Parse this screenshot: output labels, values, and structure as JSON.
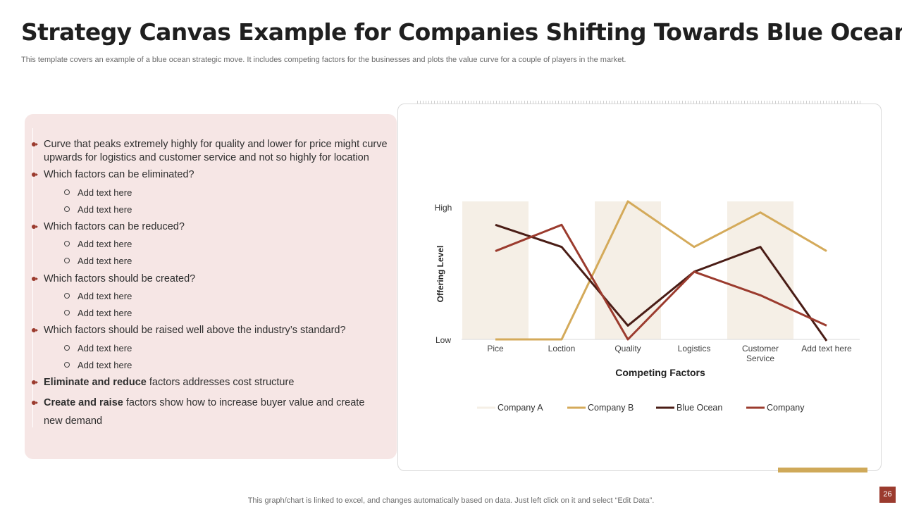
{
  "header": {
    "title": "Strategy Canvas Example for Companies Shifting Towards Blue Ocean",
    "subtitle": "This template covers an example of a blue ocean strategic move. It includes competing factors for the businesses and plots the value curve for a couple of players in the market."
  },
  "left_panel": {
    "bullet1": "Curve that peaks extremely highly for quality and lower for price might curve upwards for logistics  and customer service and not so highly for location",
    "q_eliminated": "Which factors can be eliminated?",
    "q_reduced": "Which factors can be reduced?",
    "q_created": "Which factors should be created?",
    "q_raised": "Which factors should be raised well above the industry’s standard?",
    "placeholder": "Add text here",
    "eliminate_bold": "Eliminate and reduce",
    "eliminate_rest": " factors addresses cost structure",
    "create_bold": "Create and raise",
    "create_rest": " factors show how to increase buyer value and create new demand"
  },
  "colors": {
    "panel_bg": "#f6e6e5",
    "bullet": "#9b3b2e",
    "company_a": "#f5efe6",
    "company_b": "#d4aa5a",
    "blue_ocean": "#4a1d16",
    "company": "#9b3b2e",
    "accent_gold": "#cfa959"
  },
  "chart_data": {
    "type": "line",
    "title": "",
    "xlabel": "Competing Factors",
    "ylabel": "Offering Level",
    "y_tick_labels": {
      "high": "High",
      "low": "Low"
    },
    "ylim": [
      0,
      10
    ],
    "categories": [
      "Pice",
      "Loction",
      "Quality",
      "Logistics",
      "Customer Service",
      "Add text here"
    ],
    "series": [
      {
        "name": "Company A",
        "chart_type": "column",
        "values": [
          10,
          0,
          10,
          0,
          10,
          0
        ]
      },
      {
        "name": "Company B",
        "values": [
          0,
          0,
          10,
          6.7,
          9.2,
          6.4
        ]
      },
      {
        "name": "Blue Ocean",
        "values": [
          8.3,
          6.7,
          1,
          4.9,
          6.7,
          -0.1
        ]
      },
      {
        "name": "Company",
        "values": [
          6.4,
          8.3,
          0,
          4.9,
          3.2,
          1
        ]
      }
    ],
    "legend_position": "bottom"
  },
  "footer": {
    "note": "This graph/chart is linked to excel,  and changes automatically based on data. Just left click on it and select “Edit Data”.",
    "page_number": "26"
  }
}
